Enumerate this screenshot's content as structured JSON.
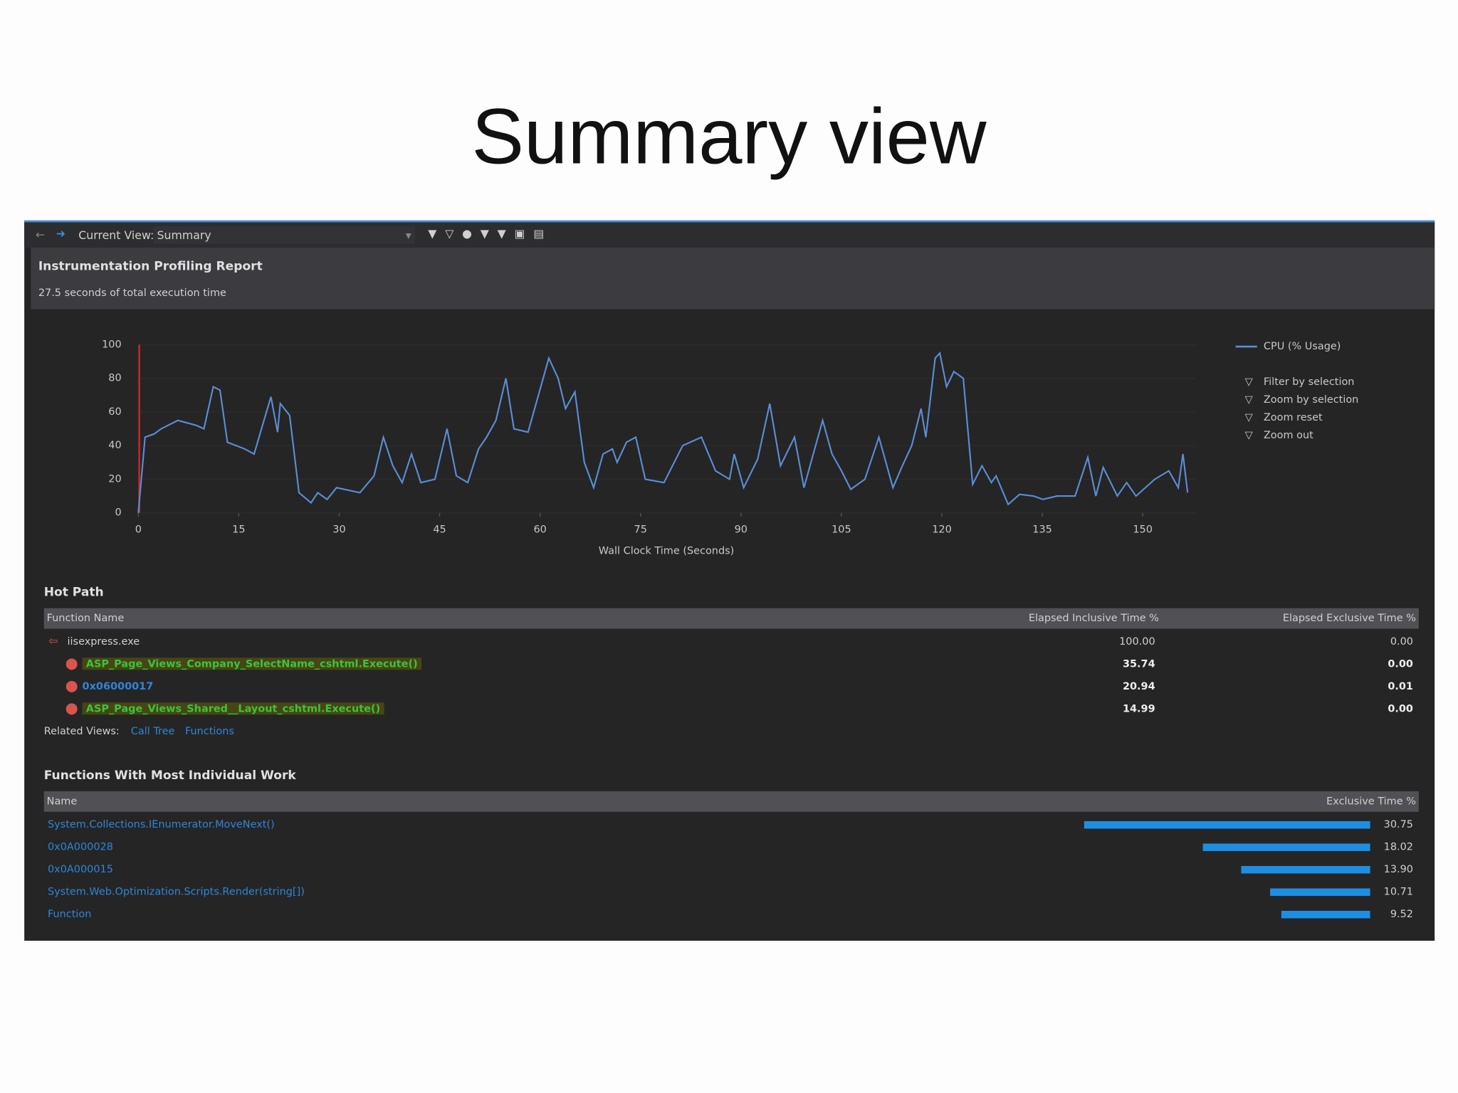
{
  "slide_title": "Summary view",
  "toolbar": {
    "current_view_label": "Current View:",
    "current_view": "Summary"
  },
  "report": {
    "title": "Instrumentation Profiling Report",
    "subtitle": "27.5 seconds of total execution time"
  },
  "chart": {
    "type": "line",
    "x_label": "Wall Clock Time (Seconds)",
    "x": [
      0,
      1.0,
      2.4,
      3.4,
      5.9,
      8.7,
      9.8,
      11.2,
      12.2,
      13.3,
      15.9,
      17.3,
      18.4,
      19.8,
      20.8,
      21.2,
      22.6,
      24.0,
      25.8,
      26.8,
      28.2,
      29.6,
      33.1,
      35.2,
      36.6,
      38.0,
      39.4,
      40.8,
      42.2,
      44.3,
      46.1,
      47.5,
      49.2,
      50.8,
      52.0,
      53.4,
      54.9,
      56.1,
      58.2,
      61.3,
      62.7,
      63.8,
      65.2,
      66.6,
      68.0,
      69.4,
      70.8,
      71.5,
      72.9,
      74.3,
      75.7,
      78.5,
      81.3,
      84.1,
      86.2,
      88.3,
      89.0,
      90.4,
      92.5,
      94.3,
      95.9,
      98.0,
      99.4,
      102.2,
      103.6,
      105.0,
      106.4,
      108.5,
      110.6,
      112.7,
      114.1,
      115.5,
      116.9,
      117.6,
      119.0,
      119.7,
      120.7,
      121.8,
      123.2,
      124.6,
      126.0,
      127.4,
      128.1,
      129.9,
      131.6,
      133.7,
      135.1,
      137.2,
      139.9,
      141.8,
      143.0,
      144.1,
      146.2,
      147.6,
      149.0,
      151.8,
      153.9,
      155.3,
      156.0,
      156.7
    ],
    "series": [
      {
        "name": "CPU (% Usage)",
        "color": "#5b8fd6",
        "values": [
          0,
          45,
          47,
          50,
          55,
          52,
          50,
          75,
          73,
          42,
          38,
          35,
          50,
          69,
          48,
          65,
          58,
          12,
          6,
          12,
          8,
          15,
          12,
          22,
          45,
          28,
          18,
          35,
          18,
          20,
          50,
          22,
          18,
          38,
          45,
          55,
          80,
          50,
          48,
          92,
          80,
          62,
          72,
          30,
          15,
          35,
          38,
          30,
          42,
          45,
          20,
          18,
          40,
          45,
          25,
          20,
          35,
          15,
          32,
          65,
          28,
          45,
          15,
          55,
          35,
          25,
          14,
          20,
          45,
          15,
          28,
          40,
          62,
          45,
          92,
          95,
          75,
          84,
          80,
          17,
          28,
          18,
          22,
          5,
          11,
          10,
          8,
          10,
          10,
          33,
          10,
          27,
          10,
          18,
          10,
          20,
          25,
          15,
          35,
          12
        ]
      }
    ],
    "xlim": [
      0,
      158
    ],
    "ylim": [
      0,
      100
    ],
    "xticks": [
      0,
      15,
      30,
      45,
      60,
      75,
      90,
      105,
      120,
      135,
      150
    ],
    "yticks": [
      0,
      20,
      40,
      60,
      80,
      100
    ],
    "actions": [
      "Filter by selection",
      "Zoom by selection",
      "Zoom reset",
      "Zoom out"
    ]
  },
  "hot_path": {
    "title": "Hot Path",
    "columns": [
      "Function Name",
      "Elapsed Inclusive Time %",
      "Elapsed Exclusive Time %"
    ],
    "rows": [
      [
        "iisexpress.exe",
        "100.00",
        "0.00"
      ],
      [
        "ASP_Page_Views_Company_SelectName_cshtml.Execute()",
        "35.74",
        "0.00"
      ],
      [
        "0x06000017",
        "20.94",
        "0.01"
      ],
      [
        "ASP_Page_Views_Shared__Layout_cshtml.Execute()",
        "14.99",
        "0.00"
      ]
    ],
    "related_label": "Related Views:",
    "related_links": [
      "Call Tree",
      "Functions"
    ]
  },
  "functions": {
    "title": "Functions With Most Individual Work",
    "columns": [
      "Name",
      "Exclusive Time %"
    ],
    "rows": [
      [
        "System.Collections.IEnumerator.MoveNext()",
        "30.75"
      ],
      [
        "0x0A000028",
        "18.02"
      ],
      [
        "0x0A000015",
        "13.90"
      ],
      [
        "System.Web.Optimization.Scripts.Render(string[])",
        "10.71"
      ],
      [
        "Function",
        "9.52"
      ]
    ]
  }
}
